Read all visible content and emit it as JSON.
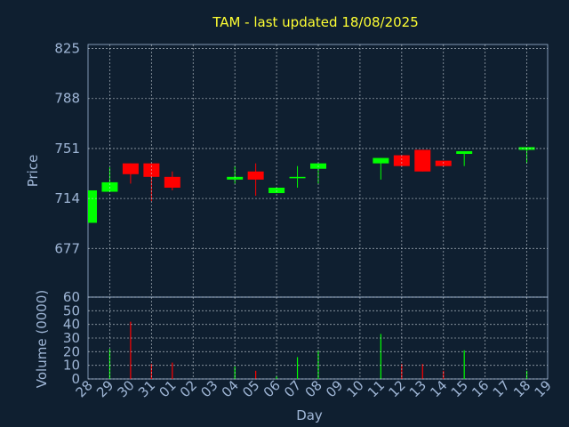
{
  "chart_data": {
    "type": "candlestick",
    "title": "TAM - last updated 18/08/2025",
    "categories": [
      "28",
      "29",
      "30",
      "31",
      "01",
      "02",
      "03",
      "04",
      "05",
      "06",
      "07",
      "08",
      "09",
      "10",
      "11",
      "12",
      "13",
      "14",
      "15",
      "16",
      "17",
      "18",
      "19"
    ],
    "open": [
      696,
      719,
      740,
      740,
      730,
      null,
      null,
      728,
      734,
      718,
      729,
      736,
      null,
      null,
      740,
      746,
      750,
      742,
      747,
      null,
      null,
      750,
      null
    ],
    "high": [
      720,
      737,
      740,
      740,
      734,
      null,
      null,
      738,
      740,
      722,
      738,
      740,
      null,
      null,
      744,
      746,
      750,
      742,
      749,
      null,
      null,
      752,
      null
    ],
    "low": [
      696,
      719,
      725,
      712,
      720,
      null,
      null,
      725,
      716,
      718,
      722,
      725,
      null,
      null,
      728,
      738,
      734,
      738,
      738,
      null,
      null,
      740,
      null
    ],
    "close": [
      720,
      726,
      732,
      730,
      722,
      null,
      null,
      730,
      728,
      722,
      730,
      740,
      null,
      null,
      744,
      738,
      734,
      738,
      749,
      null,
      null,
      752,
      null
    ],
    "volume": [
      0,
      22,
      42,
      11,
      12,
      null,
      null,
      9,
      6,
      2,
      16,
      21,
      null,
      null,
      33,
      11,
      11,
      6,
      21,
      null,
      null,
      6,
      null
    ],
    "up_color": "#00ff00",
    "down_color": "#ff0000",
    "ylabel": "Price",
    "ylim": [
      641,
      828
    ],
    "yticks": [
      677,
      714,
      751,
      788,
      825
    ],
    "y2label": "Volume (0000)",
    "y2lim": [
      0,
      60
    ],
    "y2ticks": [
      0,
      10,
      20,
      30,
      40,
      50,
      60
    ],
    "xlabel": "Day",
    "grid": true
  }
}
